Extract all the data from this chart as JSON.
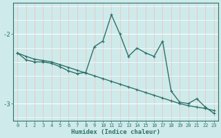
{
  "xlabel": "Humidex (Indice chaleur)",
  "bg_color": "#ceeaea",
  "grid_color_h": "#ffffff",
  "grid_color_v": "#e8c8c8",
  "line_color": "#2d7068",
  "xlim": [
    -0.5,
    23.5
  ],
  "ylim": [
    -3.25,
    -1.55
  ],
  "yticks": [
    -3,
    -2
  ],
  "xticks": [
    0,
    1,
    2,
    3,
    4,
    5,
    6,
    7,
    8,
    9,
    10,
    11,
    12,
    13,
    14,
    15,
    16,
    17,
    18,
    19,
    20,
    21,
    22,
    23
  ],
  "line1_x": [
    0,
    1,
    2,
    3,
    4,
    5,
    6,
    7,
    8,
    9,
    10,
    11,
    12,
    13,
    14,
    15,
    16,
    17,
    18,
    19,
    20,
    21,
    22,
    23
  ],
  "line1_y": [
    -2.27,
    -2.32,
    -2.36,
    -2.38,
    -2.4,
    -2.44,
    -2.48,
    -2.52,
    -2.56,
    -2.6,
    -2.64,
    -2.68,
    -2.72,
    -2.76,
    -2.8,
    -2.84,
    -2.88,
    -2.92,
    -2.96,
    -3.0,
    -3.03,
    -3.05,
    -3.07,
    -3.1
  ],
  "line2_x": [
    0,
    1,
    2,
    3,
    4,
    5,
    6,
    7,
    8,
    9,
    10,
    11,
    12,
    13,
    14,
    15,
    16,
    17,
    18,
    19,
    20,
    21,
    22,
    23
  ],
  "line2_y": [
    -2.27,
    -2.37,
    -2.4,
    -2.4,
    -2.42,
    -2.47,
    -2.53,
    -2.57,
    -2.55,
    -2.18,
    -2.1,
    -1.72,
    -2.0,
    -2.32,
    -2.2,
    -2.27,
    -2.32,
    -2.1,
    -2.82,
    -2.98,
    -3.0,
    -2.93,
    -3.05,
    -3.14
  ],
  "marker_size": 2.5,
  "line_width": 1.0
}
